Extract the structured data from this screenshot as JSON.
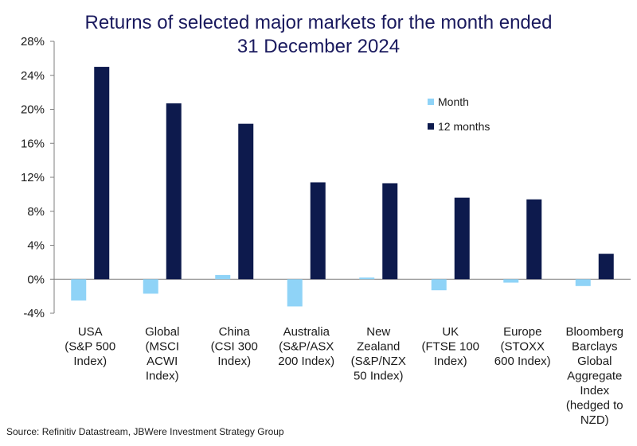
{
  "chart_data": {
    "type": "bar",
    "title_lines": [
      "Returns of selected major markets for the month ended",
      "31 December 2024"
    ],
    "categories": [
      [
        "USA",
        "(S&P 500",
        "Index)"
      ],
      [
        "Global",
        "(MSCI",
        "ACWI",
        "Index)"
      ],
      [
        "China",
        "(CSI 300",
        "Index)"
      ],
      [
        "Australia",
        "(S&P/ASX",
        "200 Index)"
      ],
      [
        "New",
        "Zealand",
        "(S&P/NZX",
        "50 Index)"
      ],
      [
        "UK",
        "(FTSE 100",
        "Index)"
      ],
      [
        "Europe",
        "(STOXX",
        "600 Index)"
      ],
      [
        "Bloomberg",
        "Barclays",
        "Global",
        "Aggregate",
        "Index",
        "(hedged to",
        "NZD)"
      ]
    ],
    "series": [
      {
        "name": "Month",
        "color": "#8fd3f7",
        "values": [
          -2.5,
          -1.7,
          0.5,
          -3.2,
          0.2,
          -1.3,
          -0.4,
          -0.8
        ]
      },
      {
        "name": "12 months",
        "color": "#0d1a4d",
        "values": [
          25.0,
          20.7,
          18.3,
          11.4,
          11.3,
          9.6,
          9.4,
          3.0
        ]
      }
    ],
    "ylim": [
      -4,
      28
    ],
    "yticks": [
      -4,
      0,
      4,
      8,
      12,
      16,
      20,
      24,
      28
    ],
    "ytick_labels": [
      "-4%",
      "0%",
      "4%",
      "8%",
      "12%",
      "16%",
      "20%",
      "24%",
      "28%"
    ],
    "legend_position": "top-right",
    "grid": false
  },
  "source": "Source: Refinitiv Datastream, JBWere Investment Strategy Group"
}
